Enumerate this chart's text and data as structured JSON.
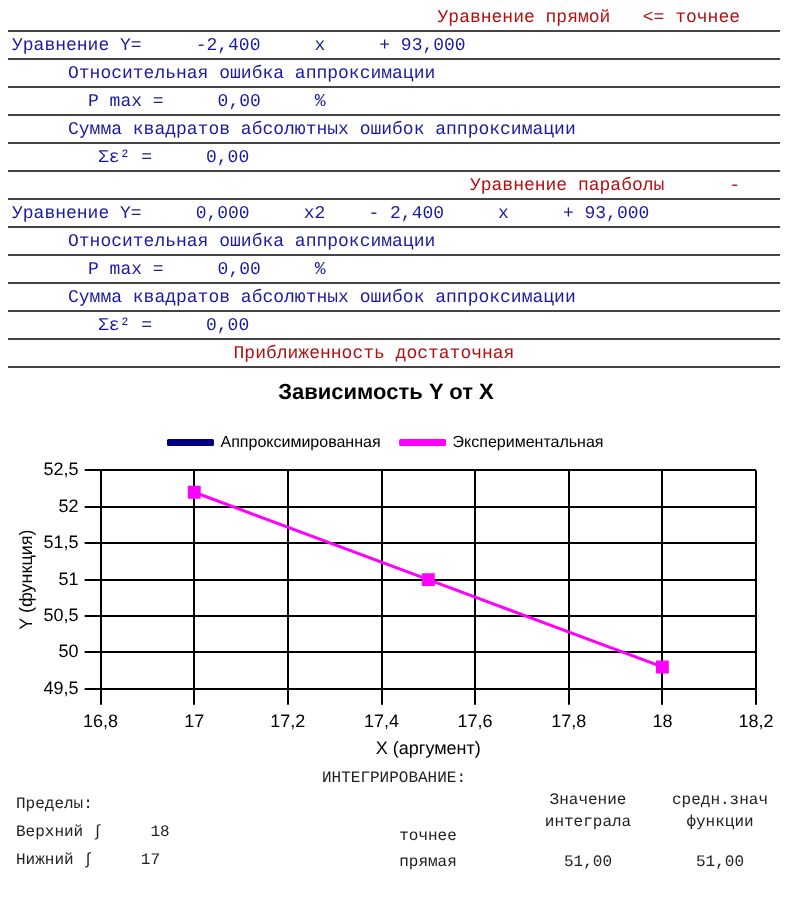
{
  "chart_data": {
    "type": "line",
    "title": "Зависимость Y от X",
    "xlabel": "X (аргумент)",
    "ylabel": "Y (функция)",
    "x": [
      17,
      17.5,
      18
    ],
    "series": [
      {
        "name": "Аппроксимированная",
        "color": "#000080",
        "values": [
          null,
          null,
          null
        ]
      },
      {
        "name": "Экспериментальная",
        "color": "#ff00ff",
        "values": [
          52.2,
          51.0,
          49.8
        ]
      }
    ],
    "xlim": [
      16.8,
      18.2
    ],
    "xticks": [
      {
        "value": 16.8,
        "label": "16,8"
      },
      17,
      {
        "value": 17.2,
        "label": "17,2"
      },
      {
        "value": 17.4,
        "label": "17,4"
      },
      {
        "value": 17.6,
        "label": "17,6"
      },
      {
        "value": 17.8,
        "label": "17,8"
      },
      18,
      {
        "value": 18.2,
        "label": "18,2"
      }
    ],
    "ylim": [
      49.5,
      52.5
    ],
    "yticks": [
      {
        "value": 49.5,
        "label": "49,5"
      },
      50,
      {
        "value": 50.5,
        "label": "50,5"
      },
      51,
      {
        "value": 51.5,
        "label": "51,5"
      },
      52,
      {
        "value": 52.5,
        "label": "52,5"
      }
    ],
    "grid": true,
    "legend": "top",
    "marker": "square",
    "line_style": "solid",
    "annotations": [
      "Уравнение прямой   <= точнее",
      "Уравнение Y=     -2,400     x     + 93,000",
      "Относительная ошибка аппроксимации",
      "P max =     0,00     %",
      "Сумма квадратов абсолютных ошибок аппроксимации",
      "Σε² =     0,00",
      "Уравнение параболы      -",
      "Уравнение Y=     0,000     x2    - 2,400     x     + 93,000",
      "Относительная ошибка аппроксимации",
      "P max =     0,00     %",
      "Сумма квадратов абсолютных ошибок аппроксимации",
      "Σε² =     0,00",
      "Приближенность достаточная",
      "ИНТЕГРИРОВАНИЕ:",
      "Пределы:",
      "Верхний ∫     18",
      "Нижний ∫     17",
      "точнее",
      "прямая",
      "Значение интеграла",
      "средн.знач функции",
      "51,00",
      "51,00"
    ]
  }
}
